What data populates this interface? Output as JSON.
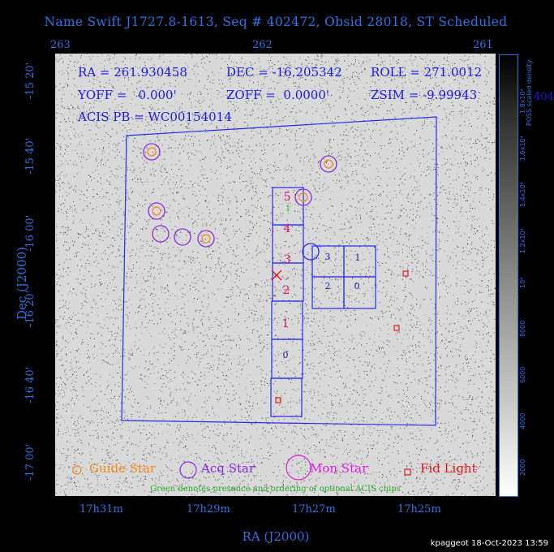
{
  "title": "Name Swift J1727.8-1613, Seq # 402472, Obsid 28018, ST Scheduled",
  "ra_top_ticks": [
    "263",
    "262",
    "261"
  ],
  "ra_bottom_ticks": [
    "17h31m",
    "17h29m",
    "17h27m",
    "17h25m"
  ],
  "dec_ticks": [
    "-15 20'",
    "-15 40'",
    "-16 00'",
    "-16 20'",
    "-16 40'",
    "-17 00'"
  ],
  "xlabel": "RA (J2000)",
  "ylabel": "Dec (J2000)",
  "info": {
    "ra": "RA = 261.930458",
    "dec": "DEC = -16.205342",
    "roll": "ROLL = 271.0012",
    "yoff": "YOFF =   0.000'",
    "zoff": "ZOFF =  0.0000'",
    "zsim": "ZSIM = -9.99943",
    "acis_pb": "ACIS PB = WC00154014"
  },
  "chips": {
    "s5": "5",
    "s4": "4",
    "s3": "3",
    "s2": "2",
    "s1": "1",
    "s0": "0",
    "i3": "3",
    "i1": "1",
    "i2": "2",
    "i0": "0",
    "optional_s5": "1"
  },
  "colorbar": {
    "title": "POSS scaled density",
    "labels": [
      "2000",
      "4000",
      "6000",
      "8000",
      "10⁴",
      "1.2x10⁴",
      "1.4x10⁴",
      "1.6x10⁴",
      "1.8x10⁴"
    ],
    "overflow": "404"
  },
  "legend": {
    "guide": "Guide Star",
    "acq": "Acq Star",
    "mon": "Mon Star",
    "fid": "Fid Light",
    "optional_note": "Green denotes presence and ordering of optional ACIS chips"
  },
  "footer": "kpaggeot 18-Oct-2023 13:59",
  "colors": {
    "axis": "#2a74e6",
    "info": "#1a1ae6",
    "guide": "#f08a1e",
    "acq": "#8a2be2",
    "mon": "#e01ee0",
    "fid": "#e01a1a",
    "chip_label": "#e0126a",
    "optional": "#2eaa2e"
  }
}
